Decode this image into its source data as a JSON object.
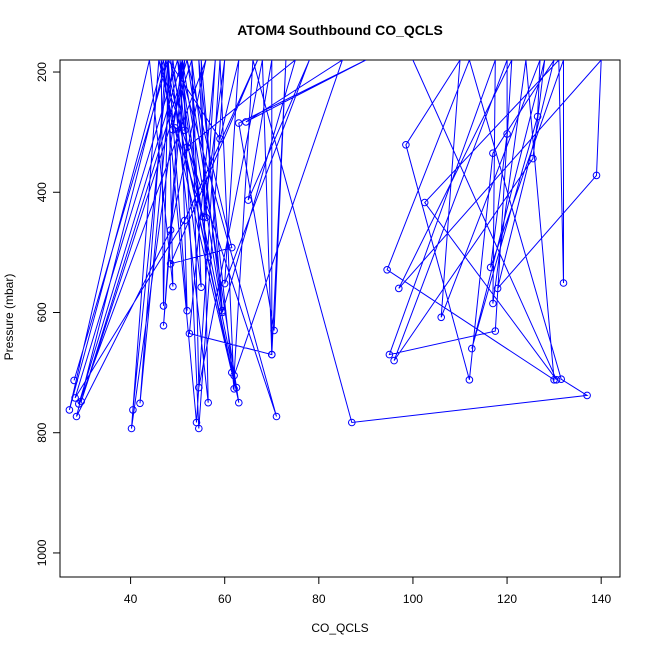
{
  "chart_data": {
    "type": "line",
    "title": "ATOM4 Southbound CO_QCLS",
    "xlabel": "CO_QCLS",
    "ylabel": "Pressure (mbar)",
    "xlim": [
      25,
      144
    ],
    "ylim": [
      1040,
      180
    ],
    "y_reversed": true,
    "x_ticks": [
      40,
      60,
      80,
      100,
      120,
      140
    ],
    "y_ticks": [
      200,
      400,
      600,
      800,
      1000
    ],
    "grid": false,
    "legend": "none",
    "color": "#0000ff",
    "series": [
      {
        "points": [
          [
            28.0,
            713
          ],
          [
            48.0,
            180
          ],
          [
            40.5,
            762
          ],
          [
            46.0,
            180
          ],
          [
            40.2,
            793
          ],
          [
            51.0,
            180
          ],
          [
            29.0,
            752
          ],
          [
            56.0,
            180
          ],
          [
            48.5,
            463
          ],
          [
            28.5,
            773
          ],
          [
            47.5,
            180
          ],
          [
            42.0,
            751
          ],
          [
            49.0,
            180
          ],
          [
            55.0,
            558
          ],
          [
            53.0,
            180
          ],
          [
            29.5,
            748
          ],
          [
            52.0,
            180
          ],
          [
            61.5,
            492
          ],
          [
            48.5,
            519
          ],
          [
            67.0,
            180
          ],
          [
            51.5,
            447
          ],
          [
            28.2,
            742
          ],
          [
            50.0,
            180
          ],
          [
            56.5,
            508
          ],
          [
            50.5,
            180
          ],
          [
            52.0,
            597
          ],
          [
            48.0,
            180
          ],
          [
            49.0,
            557
          ],
          [
            44.0,
            180
          ],
          [
            27.0,
            762
          ],
          [
            47.0,
            180
          ],
          [
            54.0,
            783
          ],
          [
            59.0,
            180
          ],
          [
            62.0,
            727
          ],
          [
            54.5,
            180
          ],
          [
            56.0,
            442
          ],
          [
            58.0,
            180
          ],
          [
            52.5,
            635
          ],
          [
            70.0,
            670
          ],
          [
            68.0,
            180
          ],
          [
            54.5,
            725
          ],
          [
            53.0,
            180
          ],
          [
            59.5,
            597
          ],
          [
            55.0,
            180
          ],
          [
            56.5,
            750
          ],
          [
            48.5,
            180
          ],
          [
            62.5,
            725
          ],
          [
            52.0,
            180
          ],
          [
            63.0,
            750
          ],
          [
            47.5,
            180
          ],
          [
            61.5,
            700
          ],
          [
            46.0,
            180
          ],
          [
            71.0,
            773
          ],
          [
            50.0,
            180
          ],
          [
            51.5,
            297
          ],
          [
            49.5,
            293
          ],
          [
            55.5,
            441
          ],
          [
            60.0,
            180
          ],
          [
            54.5,
            793
          ],
          [
            51.0,
            180
          ],
          [
            59.5,
            600
          ],
          [
            75.0,
            180
          ],
          [
            52.0,
            325
          ],
          [
            51.0,
            180
          ],
          [
            47.0,
            622
          ],
          [
            51.5,
            180
          ],
          [
            49.0,
            296
          ],
          [
            46.5,
            180
          ],
          [
            47.0,
            589
          ],
          [
            48.0,
            180
          ],
          [
            59.0,
            311
          ],
          [
            63.0,
            180
          ],
          [
            60.0,
            552
          ],
          [
            78.0,
            180
          ],
          [
            65.0,
            413
          ],
          [
            70.0,
            180
          ],
          [
            70.0,
            670
          ],
          [
            73.0,
            180
          ],
          [
            70.5,
            630
          ],
          [
            63.0,
            285
          ],
          [
            90.0,
            180
          ],
          [
            64.5,
            283
          ],
          [
            85.0,
            180
          ],
          [
            62.0,
            705
          ],
          [
            66.0,
            180
          ],
          [
            87.0,
            783
          ],
          [
            137.0,
            738
          ],
          [
            131.5,
            711
          ],
          [
            112.0,
            180
          ],
          [
            94.5,
            529
          ],
          [
            130.0,
            712
          ],
          [
            124.0,
            180
          ],
          [
            117.0,
            585
          ],
          [
            117.5,
            180
          ],
          [
            95.0,
            670
          ],
          [
            117.5,
            631
          ],
          [
            121.0,
            180
          ],
          [
            97.0,
            560
          ],
          [
            140.0,
            180
          ],
          [
            139.0,
            372
          ],
          [
            118.0,
            560
          ],
          [
            130.0,
            180
          ],
          [
            117.0,
            335
          ],
          [
            112.0,
            712
          ],
          [
            98.5,
            321
          ],
          [
            110.0,
            180
          ],
          [
            106.0,
            608
          ],
          [
            127.0,
            180
          ],
          [
            126.5,
            274
          ],
          [
            112.5,
            660
          ],
          [
            128.0,
            180
          ],
          [
            125.5,
            344
          ],
          [
            96.0,
            680
          ],
          [
            120.0,
            180
          ],
          [
            120.0,
            303
          ],
          [
            116.5,
            525
          ],
          [
            132.0,
            180
          ],
          [
            132.0,
            551
          ],
          [
            131.0,
            180
          ],
          [
            102.5,
            417
          ],
          [
            130.5,
            712
          ],
          [
            100.0,
            180
          ]
        ]
      }
    ]
  }
}
